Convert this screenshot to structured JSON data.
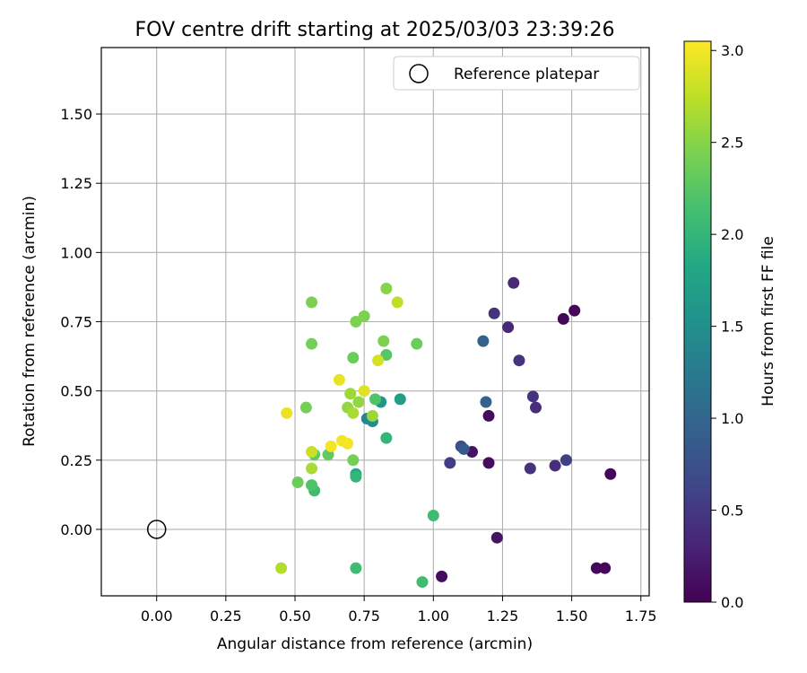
{
  "chart_data": {
    "type": "scatter",
    "title": "FOV centre drift starting at 2025/03/03 23:39:26",
    "xlabel": "Angular distance from reference (arcmin)",
    "ylabel": "Rotation from reference (arcmin)",
    "xlim": [
      -0.2,
      1.78
    ],
    "ylim": [
      -0.24,
      1.74
    ],
    "xticks": [
      "0.00",
      "0.25",
      "0.50",
      "0.75",
      "1.00",
      "1.25",
      "1.50",
      "1.75"
    ],
    "xtick_values": [
      0,
      0.25,
      0.5,
      0.75,
      1.0,
      1.25,
      1.5,
      1.75
    ],
    "yticks": [
      "0.00",
      "0.25",
      "0.50",
      "0.75",
      "1.00",
      "1.25",
      "1.50"
    ],
    "ytick_values": [
      0,
      0.25,
      0.5,
      0.75,
      1.0,
      1.25,
      1.5
    ],
    "grid": true,
    "legend": {
      "entries": [
        "Reference platepar"
      ],
      "location": "top-right"
    },
    "reference_point": {
      "x": 0.0,
      "y": 0.0
    },
    "colorbar": {
      "label": "Hours from first FF file",
      "range": [
        0.0,
        3.05
      ],
      "ticks": [
        "0.0",
        "0.5",
        "1.0",
        "1.5",
        "2.0",
        "2.5",
        "3.0"
      ],
      "tick_values": [
        0.0,
        0.5,
        1.0,
        1.5,
        2.0,
        2.5,
        3.0
      ],
      "colormap": "viridis"
    },
    "points": [
      {
        "x": 1.47,
        "y": 0.76,
        "c": 0.05
      },
      {
        "x": 1.51,
        "y": 0.79,
        "c": 0.05
      },
      {
        "x": 1.64,
        "y": 0.2,
        "c": 0.05
      },
      {
        "x": 1.59,
        "y": -0.14,
        "c": 0.05
      },
      {
        "x": 1.62,
        "y": -0.14,
        "c": 0.05
      },
      {
        "x": 1.2,
        "y": 0.41,
        "c": 0.1
      },
      {
        "x": 1.2,
        "y": 0.24,
        "c": 0.1
      },
      {
        "x": 1.23,
        "y": -0.03,
        "c": 0.15
      },
      {
        "x": 1.03,
        "y": -0.17,
        "c": 0.1
      },
      {
        "x": 1.14,
        "y": 0.28,
        "c": 0.15
      },
      {
        "x": 1.29,
        "y": 0.89,
        "c": 0.35
      },
      {
        "x": 1.27,
        "y": 0.73,
        "c": 0.35
      },
      {
        "x": 1.22,
        "y": 0.78,
        "c": 0.45
      },
      {
        "x": 1.31,
        "y": 0.61,
        "c": 0.45
      },
      {
        "x": 1.36,
        "y": 0.48,
        "c": 0.45
      },
      {
        "x": 1.37,
        "y": 0.44,
        "c": 0.4
      },
      {
        "x": 1.35,
        "y": 0.22,
        "c": 0.45
      },
      {
        "x": 1.44,
        "y": 0.23,
        "c": 0.4
      },
      {
        "x": 1.48,
        "y": 0.25,
        "c": 0.55
      },
      {
        "x": 1.06,
        "y": 0.24,
        "c": 0.55
      },
      {
        "x": 1.1,
        "y": 0.3,
        "c": 0.75
      },
      {
        "x": 1.11,
        "y": 0.29,
        "c": 0.85
      },
      {
        "x": 1.18,
        "y": 0.68,
        "c": 0.95
      },
      {
        "x": 1.19,
        "y": 0.46,
        "c": 0.95
      },
      {
        "x": 0.76,
        "y": 0.4,
        "c": 1.4
      },
      {
        "x": 0.78,
        "y": 0.39,
        "c": 1.5
      },
      {
        "x": 0.81,
        "y": 0.46,
        "c": 1.6
      },
      {
        "x": 0.88,
        "y": 0.47,
        "c": 1.7
      },
      {
        "x": 0.72,
        "y": 0.2,
        "c": 1.8
      },
      {
        "x": 0.83,
        "y": 0.33,
        "c": 2.0
      },
      {
        "x": 0.72,
        "y": 0.19,
        "c": 2.0
      },
      {
        "x": 1.0,
        "y": 0.05,
        "c": 2.1
      },
      {
        "x": 0.96,
        "y": -0.19,
        "c": 2.1
      },
      {
        "x": 0.72,
        "y": -0.14,
        "c": 2.1
      },
      {
        "x": 0.57,
        "y": 0.14,
        "c": 2.1
      },
      {
        "x": 0.56,
        "y": 0.16,
        "c": 2.2
      },
      {
        "x": 0.79,
        "y": 0.47,
        "c": 2.2
      },
      {
        "x": 0.83,
        "y": 0.63,
        "c": 2.25
      },
      {
        "x": 0.62,
        "y": 0.27,
        "c": 2.3
      },
      {
        "x": 0.57,
        "y": 0.27,
        "c": 2.3
      },
      {
        "x": 0.51,
        "y": 0.17,
        "c": 2.35
      },
      {
        "x": 0.94,
        "y": 0.67,
        "c": 2.35
      },
      {
        "x": 0.71,
        "y": 0.62,
        "c": 2.35
      },
      {
        "x": 0.54,
        "y": 0.44,
        "c": 2.4
      },
      {
        "x": 0.71,
        "y": 0.25,
        "c": 2.4
      },
      {
        "x": 0.56,
        "y": 0.67,
        "c": 2.4
      },
      {
        "x": 0.56,
        "y": 0.82,
        "c": 2.45
      },
      {
        "x": 0.72,
        "y": 0.75,
        "c": 2.45
      },
      {
        "x": 0.75,
        "y": 0.77,
        "c": 2.45
      },
      {
        "x": 0.82,
        "y": 0.68,
        "c": 2.45
      },
      {
        "x": 0.83,
        "y": 0.87,
        "c": 2.5
      },
      {
        "x": 0.69,
        "y": 0.44,
        "c": 2.55
      },
      {
        "x": 0.73,
        "y": 0.46,
        "c": 2.55
      },
      {
        "x": 0.7,
        "y": 0.49,
        "c": 2.6
      },
      {
        "x": 0.71,
        "y": 0.42,
        "c": 2.65
      },
      {
        "x": 0.78,
        "y": 0.41,
        "c": 2.6
      },
      {
        "x": 0.56,
        "y": 0.22,
        "c": 2.65
      },
      {
        "x": 0.45,
        "y": -0.14,
        "c": 2.7
      },
      {
        "x": 0.87,
        "y": 0.82,
        "c": 2.75
      },
      {
        "x": 0.8,
        "y": 0.61,
        "c": 2.85
      },
      {
        "x": 0.56,
        "y": 0.28,
        "c": 2.8
      },
      {
        "x": 0.75,
        "y": 0.5,
        "c": 2.9
      },
      {
        "x": 0.66,
        "y": 0.54,
        "c": 2.95
      },
      {
        "x": 0.47,
        "y": 0.42,
        "c": 2.95
      },
      {
        "x": 0.63,
        "y": 0.3,
        "c": 3.0
      },
      {
        "x": 0.67,
        "y": 0.32,
        "c": 3.0
      },
      {
        "x": 0.69,
        "y": 0.31,
        "c": 3.0
      }
    ]
  }
}
